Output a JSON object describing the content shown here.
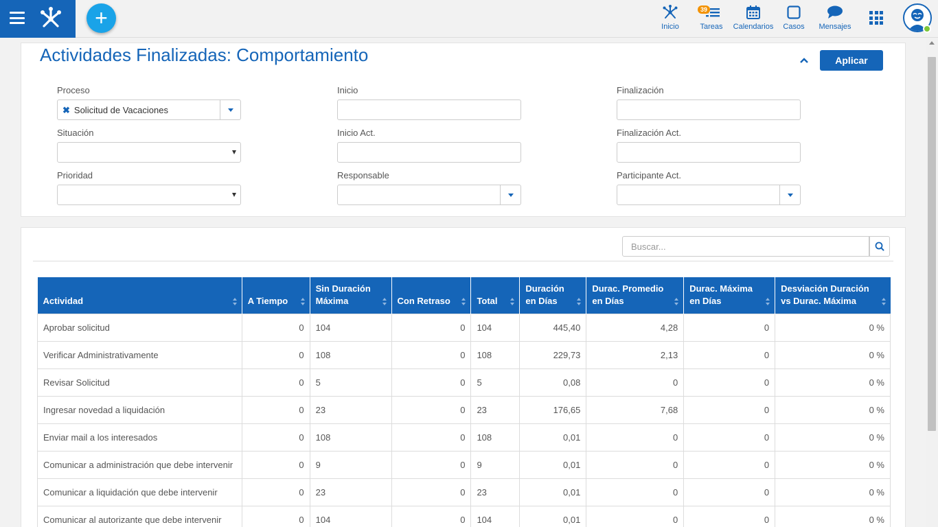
{
  "header": {
    "nav": [
      {
        "key": "inicio",
        "label": "Inicio",
        "icon": "network-icon"
      },
      {
        "key": "tareas",
        "label": "Tareas",
        "icon": "tasks-icon",
        "badge": "39"
      },
      {
        "key": "calendarios",
        "label": "Calendarios",
        "icon": "calendar-icon"
      },
      {
        "key": "casos",
        "label": "Casos",
        "icon": "square-icon"
      },
      {
        "key": "mensajes",
        "label": "Mensajes",
        "icon": "chat-bubble-icon"
      }
    ],
    "accent": "#1565b8",
    "add_button_color": "#1aa3e8",
    "badge_color": "#f39200",
    "online_color": "#7ec63a"
  },
  "filters": {
    "title": "Actividades Finalizadas: Comportamiento",
    "apply_label": "Aplicar",
    "proceso_label": "Proceso",
    "proceso_value": "Solicitud de Vacaciones",
    "inicio_label": "Inicio",
    "inicio_value": "",
    "finalizacion_label": "Finalización",
    "finalizacion_value": "",
    "situacion_label": "Situación",
    "situacion_value": "",
    "inicio_act_label": "Inicio Act.",
    "inicio_act_value": "",
    "finalizacion_act_label": "Finalización Act.",
    "finalizacion_act_value": "",
    "prioridad_label": "Prioridad",
    "prioridad_value": "",
    "responsable_label": "Responsable",
    "responsable_value": "",
    "participante_label": "Participante Act.",
    "participante_value": ""
  },
  "search": {
    "placeholder": "Buscar..."
  },
  "table": {
    "columns": [
      {
        "line1": "",
        "line2": "Actividad"
      },
      {
        "line1": "",
        "line2": "A Tiempo"
      },
      {
        "line1": "Sin Duración",
        "line2": "Máxima"
      },
      {
        "line1": "",
        "line2": "Con Retraso"
      },
      {
        "line1": "",
        "line2": "Total"
      },
      {
        "line1": "Duración",
        "line2": "en Días"
      },
      {
        "line1": "Durac. Promedio",
        "line2": "en Días"
      },
      {
        "line1": "Durac. Máxima",
        "line2": "en Días"
      },
      {
        "line1": "Desviación Duración",
        "line2": "vs Durac. Máxima"
      }
    ],
    "rows": [
      [
        "Aprobar solicitud",
        "0",
        "104",
        "0",
        "104",
        "445,40",
        "4,28",
        "0",
        "0 %"
      ],
      [
        "Verificar Administrativamente",
        "0",
        "108",
        "0",
        "108",
        "229,73",
        "2,13",
        "0",
        "0 %"
      ],
      [
        "Revisar Solicitud",
        "0",
        "5",
        "0",
        "5",
        "0,08",
        "0",
        "0",
        "0 %"
      ],
      [
        "Ingresar novedad a liquidación",
        "0",
        "23",
        "0",
        "23",
        "176,65",
        "7,68",
        "0",
        "0 %"
      ],
      [
        "Enviar mail a los interesados",
        "0",
        "108",
        "0",
        "108",
        "0,01",
        "0",
        "0",
        "0 %"
      ],
      [
        "Comunicar a administración que debe intervenir",
        "0",
        "9",
        "0",
        "9",
        "0,01",
        "0",
        "0",
        "0 %"
      ],
      [
        "Comunicar a liquidación que debe intervenir",
        "0",
        "23",
        "0",
        "23",
        "0,01",
        "0",
        "0",
        "0 %"
      ],
      [
        "Comunicar al autorizante que debe intervenir",
        "0",
        "104",
        "0",
        "104",
        "0,01",
        "0",
        "0",
        "0 %"
      ]
    ]
  }
}
